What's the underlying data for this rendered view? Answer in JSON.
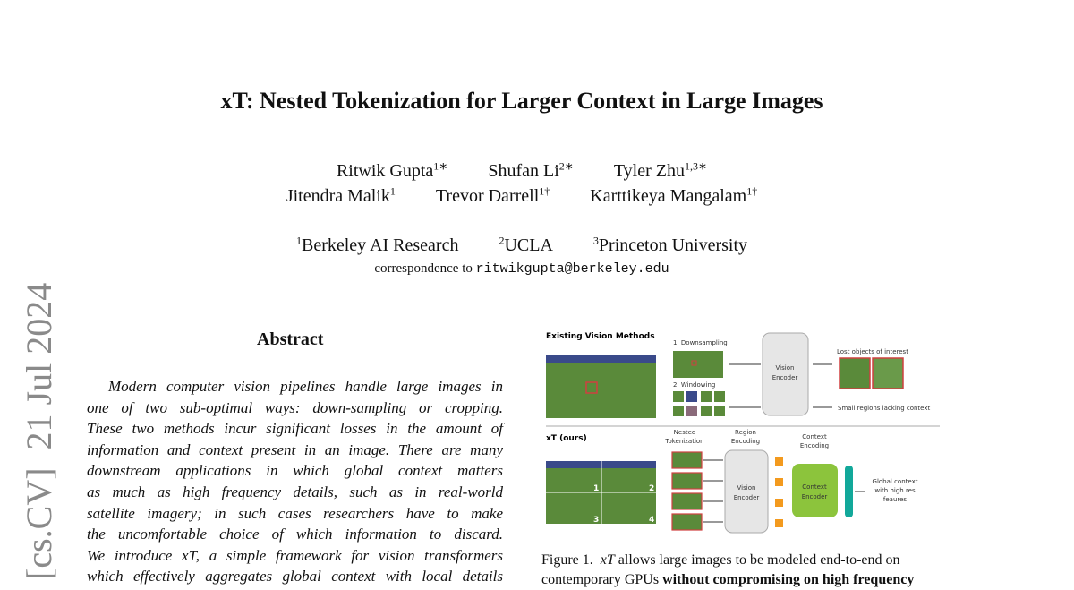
{
  "title": "xT: Nested Tokenization for Larger Context in Large Images",
  "authors_row1": [
    {
      "name": "Ritwik Gupta",
      "sup": "1∗"
    },
    {
      "name": "Shufan Li",
      "sup": "2∗"
    },
    {
      "name": "Tyler Zhu",
      "sup": "1,3∗"
    }
  ],
  "authors_row2": [
    {
      "name": "Jitendra Malik",
      "sup": "1"
    },
    {
      "name": "Trevor Darrell",
      "sup": "1†"
    },
    {
      "name": "Karttikeya Mangalam",
      "sup": "1†"
    }
  ],
  "affiliations": [
    {
      "sup": "1",
      "name": "Berkeley AI Research"
    },
    {
      "sup": "2",
      "name": "UCLA"
    },
    {
      "sup": "3",
      "name": "Princeton University"
    }
  ],
  "correspondence": {
    "label": "correspondence to",
    "email": "ritwikgupta@berkeley.edu"
  },
  "arxiv_stamp": "[cs.CV]  21 Jul 2024",
  "abstract": {
    "heading": "Abstract",
    "lines": [
      "Modern computer vision pipelines handle large images in",
      "one of two sub-optimal ways: down-sampling or cropping.",
      "These two methods incur significant losses in the amount of",
      "information and context present in an image. There are many",
      "downstream applications in which global context matters",
      "as much as high frequency details, such as in real-world",
      "satellite imagery; in such cases researchers have to make",
      "the uncomfortable choice of which information to discard.",
      "We introduce xT, a simple framework for vision transformers",
      "which effectively aggregates global context with local details"
    ]
  },
  "figure": {
    "existing_heading": "Existing Vision Methods",
    "downsampling": "1. Downsampling",
    "windowing": "2. Windowing",
    "vision_encoder": "Vision Encoder",
    "lost_objects": "Lost objects of interest",
    "small_regions": "Small regions lacking context",
    "ours_heading": "xT (ours)",
    "nested_tokenization": "Nested Tokenization",
    "region_encoding": "Region Encoding",
    "context_encoding": "Context Encoding",
    "context_encoder": "Context Encoder",
    "global_context": "Global context with high res feaures",
    "region_numbers": [
      "1",
      "2",
      "3",
      "4"
    ],
    "colors": {
      "field": "#5a8a3a",
      "highlight": "#d04040",
      "token": "#f39a1e",
      "context_encoder": "#8cc43c",
      "output": "#12a89a",
      "encoder": "#e6e6e6"
    }
  },
  "caption": {
    "line1_prefix": "Figure 1.",
    "line1_em": "xT",
    "line1_rest": "allows large images to be modeled end-to-end on",
    "line2_plain": "contemporary GPUs",
    "line2_bold": "without compromising on high frequency"
  }
}
